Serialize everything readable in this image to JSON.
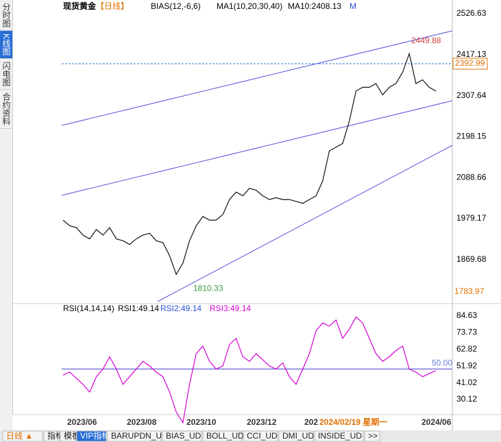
{
  "sidebar": [
    "分时图",
    "K线图",
    "闪电图",
    "合约资料"
  ],
  "header": {
    "symbol": "现货黄金",
    "period": "【日线】",
    "bias": "BIAS(12,-6,6)",
    "ma": "MA1(10,20,30,40)",
    "ma10": "MA10:2408.13",
    "m": "M"
  },
  "price": {
    "ticks": [
      2526.63,
      2417.13,
      2307.64,
      2198.15,
      2088.66,
      1979.17,
      1869.68
    ],
    "bottom": 1783.97,
    "current": 2392.99,
    "high": 2449.88,
    "low": 1810.33,
    "closes": [
      1975,
      1960,
      1955,
      1935,
      1925,
      1950,
      1935,
      1955,
      1925,
      1920,
      1910,
      1925,
      1935,
      1940,
      1920,
      1915,
      1880,
      1830,
      1860,
      1920,
      1960,
      1985,
      1975,
      1975,
      1990,
      2030,
      2050,
      2040,
      2060,
      2055,
      2040,
      2030,
      2035,
      2030,
      2030,
      2025,
      2020,
      2030,
      2040,
      2080,
      2160,
      2170,
      2180,
      2240,
      2320,
      2330,
      2330,
      2340,
      2310,
      2330,
      2340,
      2370,
      2420,
      2340,
      2350,
      2330,
      2320
    ]
  },
  "rsi": {
    "title": "RSI(14,14,14)",
    "rsi1": "RSI1:49.14",
    "rsi2": "RSI2:49.14",
    "rsi3": "RSI3:49.14",
    "ticks": [
      84.63,
      73.73,
      62.82,
      51.92,
      41.02,
      30.12
    ],
    "level": {
      "value": 50,
      "label": "50.00"
    },
    "values": [
      46,
      48,
      44,
      40,
      35,
      45,
      50,
      58,
      50,
      40,
      45,
      50,
      55,
      52,
      48,
      45,
      35,
      22,
      15,
      40,
      60,
      65,
      55,
      50,
      52,
      66,
      70,
      58,
      55,
      60,
      56,
      52,
      50,
      54,
      45,
      40,
      50,
      60,
      75,
      80,
      78,
      82,
      70,
      76,
      84,
      80,
      70,
      60,
      55,
      58,
      62,
      65,
      50,
      48,
      45,
      47,
      49
    ]
  },
  "xaxis": [
    "2023/06",
    "2023/08",
    "2023/10",
    "2023/12",
    "202",
    "2024/02/19 星期一",
    "2024/06"
  ],
  "tabs": [
    "日线 ▲",
    "指标",
    "模板",
    "VIP指标",
    "BARUPDN_UD",
    "BIAS_UD",
    "BOLL_UD",
    "CCI_UD",
    "DMI_UD",
    "INSIDE_UD",
    ">>"
  ]
}
